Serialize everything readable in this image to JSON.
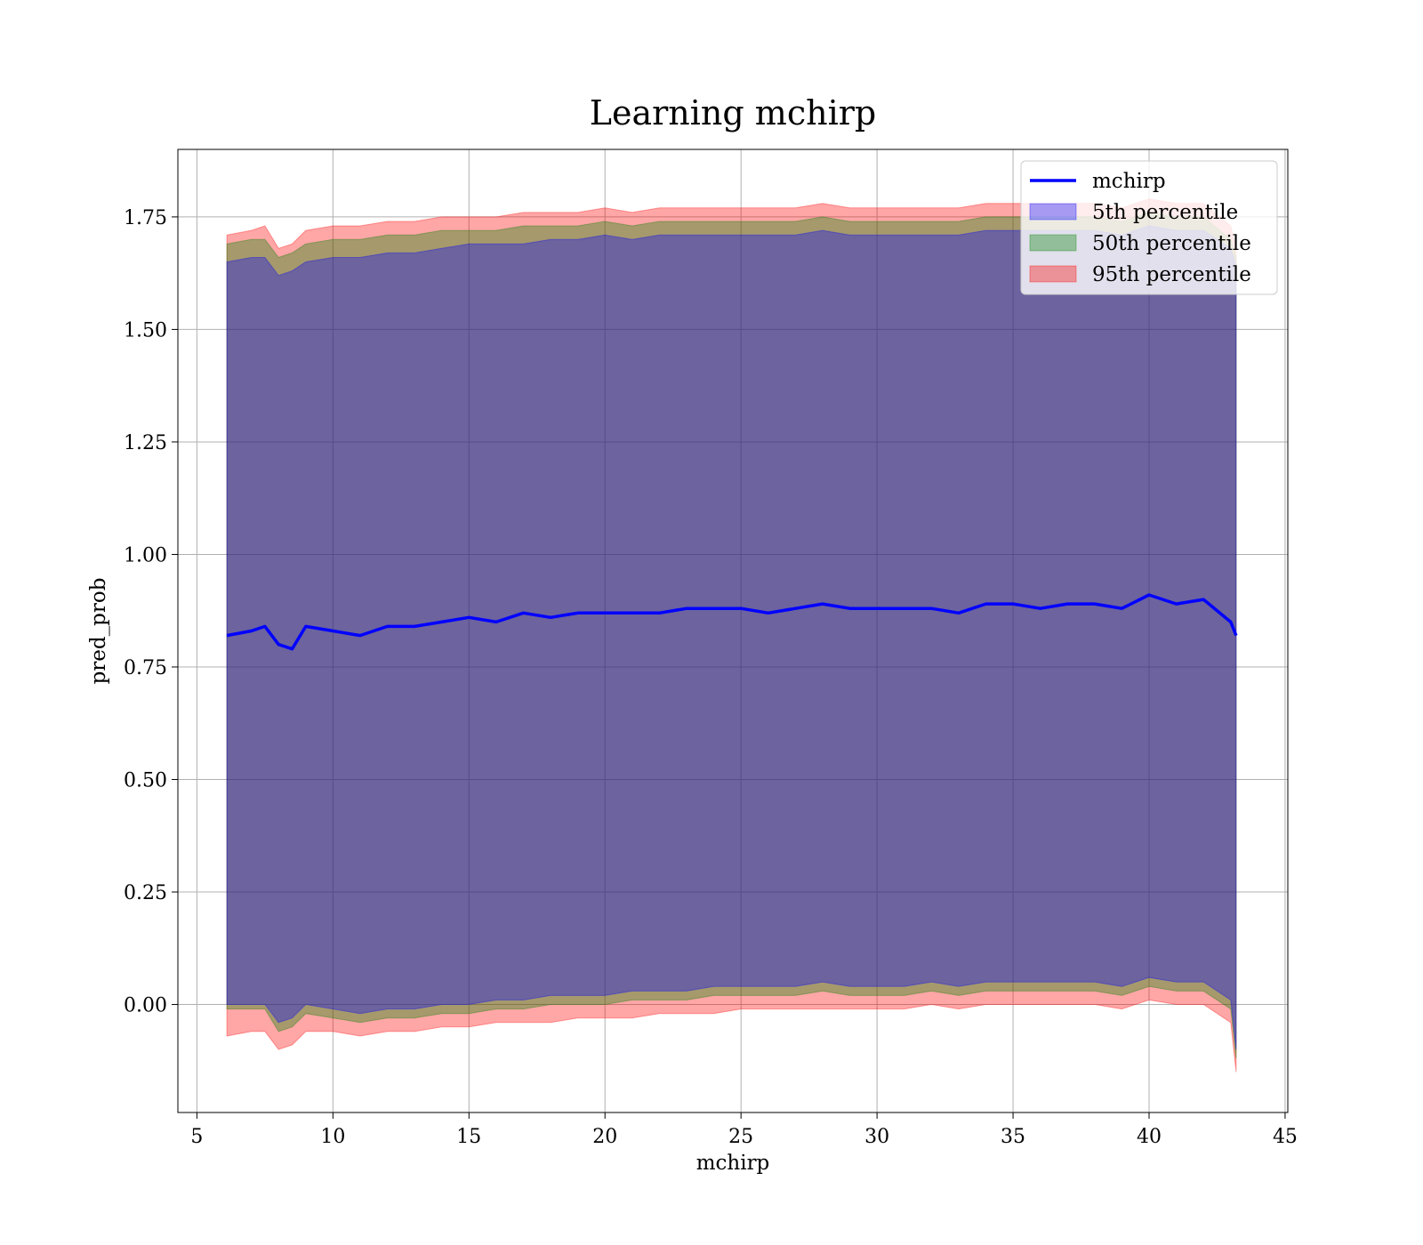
{
  "chart_data": {
    "type": "area",
    "title": "Learning mchirp",
    "xlabel": "mchirp",
    "ylabel": "pred_prob",
    "xlim": [
      4.3,
      45.1
    ],
    "ylim": [
      -0.24,
      1.9
    ],
    "xticks": [
      5,
      10,
      15,
      20,
      25,
      30,
      35,
      40,
      45
    ],
    "yticks": [
      0.0,
      0.25,
      0.5,
      0.75,
      1.0,
      1.25,
      1.5,
      1.75
    ],
    "ytick_labels": [
      "0.00",
      "0.25",
      "0.50",
      "0.75",
      "1.00",
      "1.25",
      "1.50",
      "1.75"
    ],
    "grid": true,
    "legend_position": "top-right",
    "x": [
      6.1,
      7,
      7.5,
      8,
      8.5,
      9,
      10,
      11,
      12,
      13,
      14,
      15,
      16,
      17,
      18,
      19,
      20,
      21,
      22,
      23,
      24,
      25,
      26,
      27,
      28,
      29,
      30,
      31,
      32,
      33,
      34,
      35,
      36,
      37,
      38,
      39,
      40,
      41,
      42,
      43,
      43.2
    ],
    "series": [
      {
        "name": "mchirp",
        "kind": "line",
        "color": "#0000ff",
        "values": [
          0.82,
          0.83,
          0.84,
          0.8,
          0.79,
          0.84,
          0.83,
          0.82,
          0.84,
          0.84,
          0.85,
          0.86,
          0.85,
          0.87,
          0.86,
          0.87,
          0.87,
          0.87,
          0.87,
          0.88,
          0.88,
          0.88,
          0.87,
          0.88,
          0.89,
          0.88,
          0.88,
          0.88,
          0.88,
          0.87,
          0.89,
          0.89,
          0.88,
          0.89,
          0.89,
          0.88,
          0.91,
          0.89,
          0.9,
          0.85,
          0.82
        ]
      },
      {
        "name": "5th percentile",
        "kind": "band",
        "color": "#0000ff",
        "lower": [
          0.0,
          0.0,
          0.0,
          -0.04,
          -0.03,
          0.0,
          -0.01,
          -0.02,
          -0.01,
          -0.01,
          0.0,
          0.0,
          0.01,
          0.01,
          0.02,
          0.02,
          0.02,
          0.03,
          0.03,
          0.03,
          0.04,
          0.04,
          0.04,
          0.04,
          0.05,
          0.04,
          0.04,
          0.04,
          0.05,
          0.04,
          0.05,
          0.05,
          0.05,
          0.05,
          0.05,
          0.04,
          0.06,
          0.05,
          0.05,
          0.01,
          -0.1
        ],
        "upper": [
          1.65,
          1.66,
          1.66,
          1.62,
          1.63,
          1.65,
          1.66,
          1.66,
          1.67,
          1.67,
          1.68,
          1.69,
          1.69,
          1.69,
          1.7,
          1.7,
          1.71,
          1.7,
          1.71,
          1.71,
          1.71,
          1.71,
          1.71,
          1.71,
          1.72,
          1.71,
          1.71,
          1.71,
          1.71,
          1.71,
          1.72,
          1.72,
          1.72,
          1.72,
          1.72,
          1.71,
          1.73,
          1.72,
          1.72,
          1.68,
          1.64
        ]
      },
      {
        "name": "50th percentile",
        "kind": "band",
        "color": "#008000",
        "lower": [
          -0.01,
          -0.01,
          -0.01,
          -0.06,
          -0.05,
          -0.02,
          -0.03,
          -0.04,
          -0.03,
          -0.03,
          -0.02,
          -0.02,
          -0.01,
          -0.01,
          0.0,
          0.0,
          0.0,
          0.01,
          0.01,
          0.01,
          0.02,
          0.02,
          0.02,
          0.02,
          0.03,
          0.02,
          0.02,
          0.02,
          0.03,
          0.02,
          0.03,
          0.03,
          0.03,
          0.03,
          0.03,
          0.02,
          0.04,
          0.03,
          0.03,
          -0.01,
          -0.12
        ],
        "upper": [
          1.69,
          1.7,
          1.7,
          1.66,
          1.67,
          1.69,
          1.7,
          1.7,
          1.71,
          1.71,
          1.72,
          1.72,
          1.72,
          1.73,
          1.73,
          1.73,
          1.74,
          1.73,
          1.74,
          1.74,
          1.74,
          1.74,
          1.74,
          1.74,
          1.75,
          1.74,
          1.74,
          1.74,
          1.74,
          1.74,
          1.75,
          1.75,
          1.75,
          1.75,
          1.75,
          1.74,
          1.76,
          1.75,
          1.75,
          1.7,
          1.66
        ]
      },
      {
        "name": "95th percentile",
        "kind": "band",
        "color": "#ff0000",
        "lower": [
          -0.07,
          -0.06,
          -0.06,
          -0.1,
          -0.09,
          -0.06,
          -0.06,
          -0.07,
          -0.06,
          -0.06,
          -0.05,
          -0.05,
          -0.04,
          -0.04,
          -0.04,
          -0.03,
          -0.03,
          -0.03,
          -0.02,
          -0.02,
          -0.02,
          -0.01,
          -0.01,
          -0.01,
          -0.01,
          -0.01,
          -0.01,
          -0.01,
          0.0,
          -0.01,
          0.0,
          0.0,
          0.0,
          0.0,
          0.0,
          -0.01,
          0.01,
          0.0,
          0.0,
          -0.04,
          -0.15
        ],
        "upper": [
          1.71,
          1.72,
          1.73,
          1.68,
          1.69,
          1.72,
          1.73,
          1.73,
          1.74,
          1.74,
          1.75,
          1.75,
          1.75,
          1.76,
          1.76,
          1.76,
          1.77,
          1.76,
          1.77,
          1.77,
          1.77,
          1.77,
          1.77,
          1.77,
          1.78,
          1.77,
          1.77,
          1.77,
          1.77,
          1.77,
          1.78,
          1.78,
          1.78,
          1.78,
          1.78,
          1.77,
          1.79,
          1.78,
          1.78,
          1.73,
          1.68
        ]
      }
    ]
  }
}
